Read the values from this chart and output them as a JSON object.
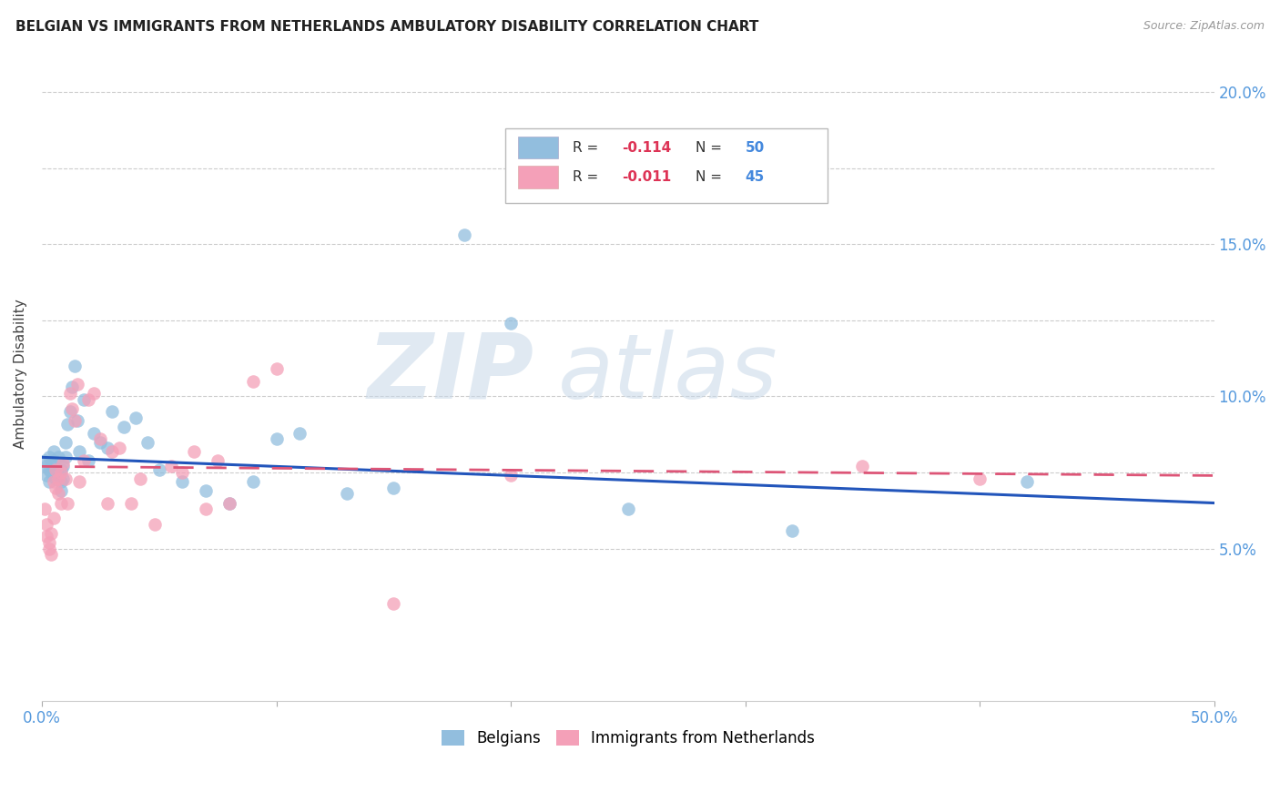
{
  "title": "BELGIAN VS IMMIGRANTS FROM NETHERLANDS AMBULATORY DISABILITY CORRELATION CHART",
  "source": "Source: ZipAtlas.com",
  "ylabel": "Ambulatory Disability",
  "xlim": [
    0.0,
    0.5
  ],
  "ylim": [
    0.0,
    0.215
  ],
  "ytick_positions": [
    0.05,
    0.075,
    0.1,
    0.125,
    0.15,
    0.175,
    0.2
  ],
  "ytick_labels": [
    "5.0%",
    "",
    "10.0%",
    "",
    "15.0%",
    "",
    "20.0%"
  ],
  "xtick_positions": [
    0.0,
    0.1,
    0.2,
    0.3,
    0.4,
    0.5
  ],
  "xtick_labels": [
    "0.0%",
    "",
    "",
    "",
    "",
    "50.0%"
  ],
  "belgian_color": "#92bede",
  "immigrant_color": "#f4a0b8",
  "belgian_trend_color": "#2255bb",
  "immigrant_trend_color": "#dd5577",
  "background_color": "#ffffff",
  "grid_color": "#cccccc",
  "watermark_zip": "ZIP",
  "watermark_atlas": "atlas",
  "legend_box_color": "#aaccee",
  "legend_box_color2": "#f4a0b8",
  "belgian_x": [
    0.001,
    0.002,
    0.002,
    0.003,
    0.003,
    0.003,
    0.004,
    0.004,
    0.005,
    0.005,
    0.006,
    0.006,
    0.007,
    0.007,
    0.008,
    0.008,
    0.008,
    0.009,
    0.009,
    0.01,
    0.01,
    0.011,
    0.012,
    0.013,
    0.014,
    0.015,
    0.016,
    0.018,
    0.02,
    0.022,
    0.025,
    0.028,
    0.03,
    0.035,
    0.04,
    0.045,
    0.05,
    0.06,
    0.07,
    0.08,
    0.09,
    0.1,
    0.11,
    0.13,
    0.15,
    0.18,
    0.2,
    0.25,
    0.32,
    0.42
  ],
  "belgian_y": [
    0.079,
    0.077,
    0.074,
    0.08,
    0.076,
    0.072,
    0.078,
    0.075,
    0.082,
    0.079,
    0.076,
    0.073,
    0.08,
    0.074,
    0.076,
    0.072,
    0.069,
    0.077,
    0.073,
    0.085,
    0.08,
    0.091,
    0.095,
    0.103,
    0.11,
    0.092,
    0.082,
    0.099,
    0.079,
    0.088,
    0.085,
    0.083,
    0.095,
    0.09,
    0.093,
    0.085,
    0.076,
    0.072,
    0.069,
    0.065,
    0.072,
    0.086,
    0.088,
    0.068,
    0.07,
    0.153,
    0.124,
    0.063,
    0.056,
    0.072
  ],
  "immigrant_x": [
    0.001,
    0.002,
    0.002,
    0.003,
    0.003,
    0.004,
    0.004,
    0.005,
    0.005,
    0.006,
    0.006,
    0.007,
    0.007,
    0.008,
    0.008,
    0.009,
    0.01,
    0.011,
    0.012,
    0.013,
    0.014,
    0.015,
    0.016,
    0.018,
    0.02,
    0.022,
    0.025,
    0.028,
    0.03,
    0.033,
    0.038,
    0.042,
    0.048,
    0.055,
    0.06,
    0.065,
    0.07,
    0.075,
    0.08,
    0.09,
    0.1,
    0.15,
    0.2,
    0.35,
    0.4
  ],
  "immigrant_y": [
    0.063,
    0.058,
    0.054,
    0.052,
    0.05,
    0.048,
    0.055,
    0.06,
    0.072,
    0.07,
    0.076,
    0.073,
    0.068,
    0.065,
    0.075,
    0.078,
    0.073,
    0.065,
    0.101,
    0.096,
    0.092,
    0.104,
    0.072,
    0.079,
    0.099,
    0.101,
    0.086,
    0.065,
    0.082,
    0.083,
    0.065,
    0.073,
    0.058,
    0.077,
    0.075,
    0.082,
    0.063,
    0.079,
    0.065,
    0.105,
    0.109,
    0.032,
    0.074,
    0.077,
    0.073
  ]
}
